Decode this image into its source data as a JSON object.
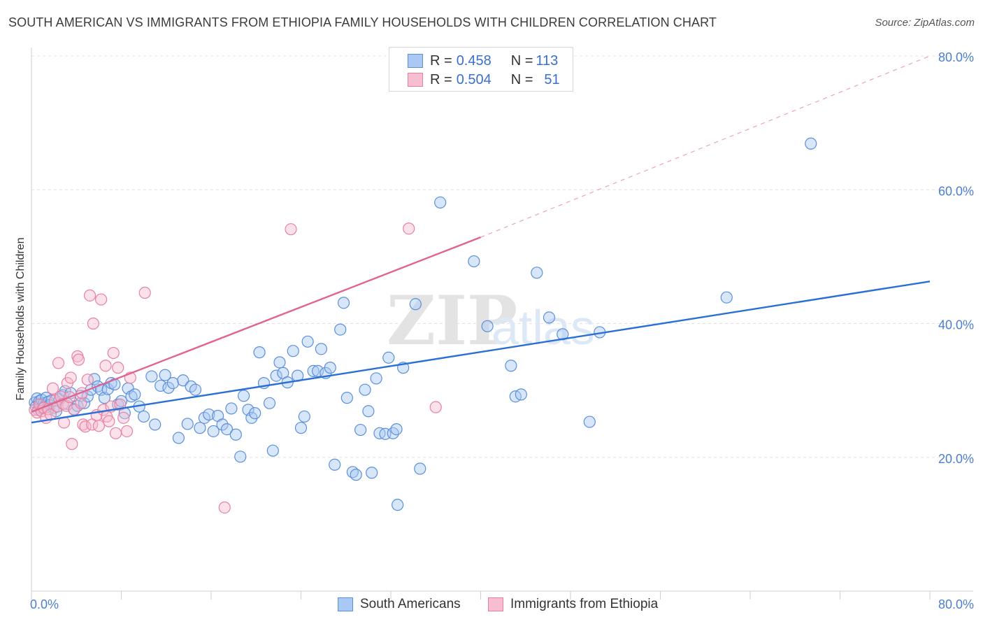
{
  "header": {
    "title": "SOUTH AMERICAN VS IMMIGRANTS FROM ETHIOPIA FAMILY HOUSEHOLDS WITH CHILDREN CORRELATION CHART",
    "source": "Source: ZipAtlas.com"
  },
  "watermark": {
    "zip": "ZIP",
    "atlas": "atlas"
  },
  "legend": {
    "r_label": "R = ",
    "n_label": "N = ",
    "series": [
      {
        "r": "0.458",
        "n": "113"
      },
      {
        "r": "0.504",
        "n": "51"
      }
    ]
  },
  "colors": {
    "blue_fill": "#a9c8f3",
    "blue_stroke": "#5b8fd9",
    "blue_line": "#2a6fd6",
    "pink_fill": "#f7bdd0",
    "pink_stroke": "#e8809f",
    "pink_line": "#e0648f"
  },
  "chart_data": {
    "type": "scatter",
    "title": "SOUTH AMERICAN VS IMMIGRANTS FROM ETHIOPIA FAMILY HOUSEHOLDS WITH CHILDREN CORRELATION CHART",
    "xlabel": "",
    "ylabel": "Family Households with Children",
    "xlim": [
      0,
      80
    ],
    "ylim": [
      0,
      80
    ],
    "x_tick_labels": [
      "0.0%",
      "80.0%"
    ],
    "y_tick_labels": [
      "20.0%",
      "40.0%",
      "60.0%",
      "80.0%"
    ],
    "y_ticks": [
      20,
      40,
      60,
      80
    ],
    "gridlines": true,
    "legend_position": "top-center",
    "series": [
      {
        "name": "South Americans",
        "color": "#5b8fd9",
        "R": 0.458,
        "N": 113,
        "trend": {
          "x": [
            0,
            80
          ],
          "y": [
            25.2,
            46.3
          ],
          "style": "solid"
        },
        "points": [
          [
            0.3,
            28.2
          ],
          [
            0.4,
            27.6
          ],
          [
            0.5,
            28.8
          ],
          [
            0.6,
            27.1
          ],
          [
            0.7,
            28.4
          ],
          [
            0.8,
            27.9
          ],
          [
            0.9,
            28.6
          ],
          [
            1.0,
            27.3
          ],
          [
            1.1,
            28.1
          ],
          [
            1.2,
            27.7
          ],
          [
            1.3,
            28.9
          ],
          [
            1.4,
            27.5
          ],
          [
            1.5,
            28.3
          ],
          [
            1.6,
            27.8
          ],
          [
            1.8,
            28.5
          ],
          [
            2.0,
            27.4
          ],
          [
            2.2,
            26.9
          ],
          [
            2.5,
            28.7
          ],
          [
            2.8,
            29.3
          ],
          [
            3.0,
            29.9
          ],
          [
            3.2,
            28.0
          ],
          [
            3.5,
            29.6
          ],
          [
            3.8,
            27.2
          ],
          [
            4.1,
            27.7
          ],
          [
            4.4,
            29.2
          ],
          [
            4.7,
            28.1
          ],
          [
            5.0,
            29.1
          ],
          [
            5.3,
            30.1
          ],
          [
            5.6,
            31.7
          ],
          [
            5.9,
            30.6
          ],
          [
            6.2,
            30.1
          ],
          [
            6.5,
            28.9
          ],
          [
            6.8,
            30.2
          ],
          [
            7.1,
            31.1
          ],
          [
            7.4,
            30.9
          ],
          [
            7.7,
            27.9
          ],
          [
            8.0,
            28.4
          ],
          [
            8.3,
            26.6
          ],
          [
            8.6,
            30.3
          ],
          [
            8.9,
            29.1
          ],
          [
            9.2,
            29.4
          ],
          [
            9.6,
            27.6
          ],
          [
            10.0,
            26.1
          ],
          [
            10.7,
            32.1
          ],
          [
            11.0,
            24.9
          ],
          [
            11.5,
            30.7
          ],
          [
            11.9,
            32.3
          ],
          [
            12.2,
            30.4
          ],
          [
            12.6,
            31.1
          ],
          [
            13.1,
            22.9
          ],
          [
            13.5,
            31.5
          ],
          [
            13.9,
            25.0
          ],
          [
            14.2,
            30.6
          ],
          [
            14.6,
            30.1
          ],
          [
            15.0,
            24.4
          ],
          [
            15.4,
            25.9
          ],
          [
            15.8,
            26.4
          ],
          [
            16.2,
            23.9
          ],
          [
            16.6,
            26.2
          ],
          [
            17.0,
            24.9
          ],
          [
            17.4,
            24.2
          ],
          [
            17.8,
            27.3
          ],
          [
            18.2,
            23.4
          ],
          [
            18.6,
            20.1
          ],
          [
            18.9,
            29.2
          ],
          [
            19.3,
            27.1
          ],
          [
            19.6,
            25.9
          ],
          [
            19.9,
            26.6
          ],
          [
            20.3,
            35.7
          ],
          [
            20.7,
            31.1
          ],
          [
            21.2,
            28.1
          ],
          [
            21.5,
            21.0
          ],
          [
            21.8,
            32.2
          ],
          [
            22.1,
            34.2
          ],
          [
            22.4,
            32.6
          ],
          [
            22.8,
            31.2
          ],
          [
            23.3,
            35.9
          ],
          [
            23.7,
            32.2
          ],
          [
            24.0,
            24.4
          ],
          [
            24.3,
            26.1
          ],
          [
            24.6,
            37.3
          ],
          [
            25.1,
            32.9
          ],
          [
            25.5,
            32.9
          ],
          [
            25.8,
            36.2
          ],
          [
            26.2,
            32.6
          ],
          [
            26.6,
            33.4
          ],
          [
            27.0,
            18.9
          ],
          [
            27.5,
            39.1
          ],
          [
            27.8,
            43.1
          ],
          [
            28.1,
            28.9
          ],
          [
            28.6,
            17.8
          ],
          [
            28.9,
            17.4
          ],
          [
            29.3,
            24.1
          ],
          [
            29.7,
            30.1
          ],
          [
            30.0,
            26.9
          ],
          [
            30.3,
            17.7
          ],
          [
            30.7,
            31.8
          ],
          [
            31.0,
            23.6
          ],
          [
            31.5,
            23.5
          ],
          [
            31.8,
            34.9
          ],
          [
            32.2,
            23.6
          ],
          [
            32.5,
            24.2
          ],
          [
            32.6,
            12.9
          ],
          [
            33.1,
            33.4
          ],
          [
            34.2,
            42.9
          ],
          [
            34.6,
            18.3
          ],
          [
            36.4,
            58.1
          ],
          [
            39.4,
            49.3
          ],
          [
            40.6,
            39.6
          ],
          [
            42.7,
            33.7
          ],
          [
            43.1,
            29.1
          ],
          [
            43.6,
            29.4
          ],
          [
            45.0,
            47.6
          ],
          [
            46.1,
            40.9
          ],
          [
            47.3,
            38.4
          ],
          [
            49.7,
            25.3
          ],
          [
            50.6,
            38.7
          ],
          [
            61.9,
            43.9
          ],
          [
            69.4,
            66.9
          ]
        ]
      },
      {
        "name": "Immigrants from Ethiopia",
        "color": "#e8809f",
        "R": 0.504,
        "N": 51,
        "trend": {
          "x": [
            0,
            40
          ],
          "y": [
            26.8,
            52.9
          ],
          "style": "solid",
          "extended_x": [
            40,
            80
          ],
          "extended_y": [
            52.9,
            80.0
          ],
          "extended_style": "dashed"
        },
        "points": [
          [
            0.3,
            27.1
          ],
          [
            0.5,
            26.7
          ],
          [
            0.7,
            27.9
          ],
          [
            0.9,
            26.9
          ],
          [
            1.1,
            27.4
          ],
          [
            1.3,
            25.9
          ],
          [
            1.5,
            27.2
          ],
          [
            1.7,
            26.4
          ],
          [
            1.9,
            30.3
          ],
          [
            2.1,
            28.5
          ],
          [
            2.3,
            27.6
          ],
          [
            2.4,
            34.1
          ],
          [
            2.6,
            29.1
          ],
          [
            2.8,
            28.0
          ],
          [
            2.9,
            25.2
          ],
          [
            3.1,
            27.7
          ],
          [
            3.2,
            31.1
          ],
          [
            3.4,
            29.0
          ],
          [
            3.5,
            31.9
          ],
          [
            3.6,
            22.0
          ],
          [
            3.8,
            27.1
          ],
          [
            4.1,
            35.1
          ],
          [
            4.2,
            34.6
          ],
          [
            4.4,
            28.1
          ],
          [
            4.5,
            29.6
          ],
          [
            4.6,
            24.9
          ],
          [
            4.8,
            24.6
          ],
          [
            5.0,
            31.6
          ],
          [
            5.2,
            44.2
          ],
          [
            5.4,
            24.9
          ],
          [
            5.5,
            40.0
          ],
          [
            5.8,
            26.3
          ],
          [
            6.0,
            24.7
          ],
          [
            6.2,
            43.6
          ],
          [
            6.4,
            27.1
          ],
          [
            6.6,
            33.7
          ],
          [
            6.7,
            26.1
          ],
          [
            6.9,
            25.4
          ],
          [
            7.1,
            27.6
          ],
          [
            7.3,
            35.6
          ],
          [
            7.5,
            23.6
          ],
          [
            7.7,
            33.4
          ],
          [
            7.9,
            27.9
          ],
          [
            8.2,
            25.9
          ],
          [
            8.5,
            23.9
          ],
          [
            8.8,
            31.9
          ],
          [
            10.1,
            44.6
          ],
          [
            17.2,
            12.5
          ],
          [
            23.1,
            54.1
          ],
          [
            33.6,
            54.2
          ],
          [
            36.0,
            27.5
          ]
        ]
      }
    ]
  },
  "bottom_legend": {
    "items": [
      {
        "label": "South Americans"
      },
      {
        "label": "Immigrants from Ethiopia"
      }
    ]
  }
}
